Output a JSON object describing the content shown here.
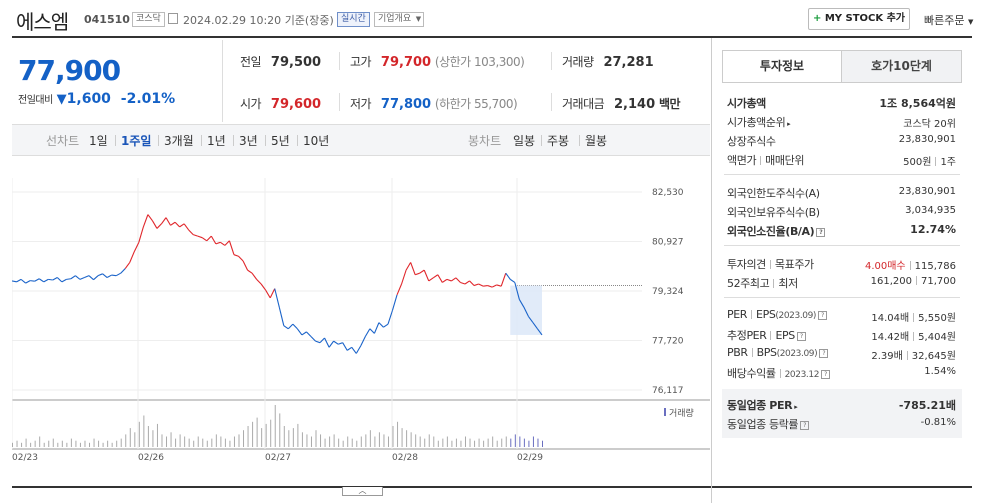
{
  "header": {
    "name": "에스엠",
    "code": "041510",
    "market": "코스닥",
    "datetime": "2024.02.29 10:20",
    "basis": "기준(장중)",
    "realtime": "실시간",
    "company_info": "기업개요",
    "mystock_btn": "MY STOCK 추가",
    "quick_order": "빠른주문"
  },
  "price": {
    "current": "77,900",
    "compare_label": "전일대비",
    "change": "1,600",
    "change_pct": "-2.01%"
  },
  "quote": {
    "prev_label": "전일",
    "prev": "79,500",
    "high_label": "고가",
    "high": "79,700",
    "upper_limit": "(상한가 103,300)",
    "volume_label": "거래량",
    "volume": "27,281",
    "open_label": "시가",
    "open": "79,600",
    "low_label": "저가",
    "low": "77,800",
    "lower_limit": "(하한가 55,700)",
    "amount_label": "거래대금",
    "amount": "2,140",
    "amount_unit": "백만"
  },
  "toolbar": {
    "line_label": "선차트",
    "periods": [
      "1일",
      "1주일",
      "3개월",
      "1년",
      "3년",
      "5년",
      "10년"
    ],
    "active_period": "1주일",
    "candle_label": "봉차트",
    "candles": [
      "일봉",
      "주봉",
      "월봉"
    ]
  },
  "chart_data": {
    "type": "line",
    "y_ticks": [
      "82,530",
      "80,927",
      "79,324",
      "77,720",
      "76,117"
    ],
    "ylim": [
      76117,
      82530
    ],
    "x_ticks": [
      "02/23",
      "02/26",
      "02/27",
      "02/28",
      "02/29"
    ],
    "prev_close": 79500,
    "legend": "거래량",
    "colors": {
      "up": "#e0262b",
      "down": "#1a63c9",
      "volume": "#aaaaaa"
    },
    "series_price": [
      79650,
      79620,
      79700,
      79580,
      79660,
      79640,
      79720,
      79620,
      79700,
      79680,
      79760,
      79620,
      79700,
      79720,
      79820,
      79700,
      79760,
      79820,
      79690,
      79820,
      79880,
      79760,
      79840,
      79820,
      79900,
      80050,
      80250,
      80600,
      80900,
      81400,
      81800,
      81600,
      81350,
      81500,
      81700,
      81450,
      81550,
      81400,
      81500,
      81300,
      81150,
      81100,
      81050,
      80950,
      81100,
      80850,
      80900,
      80800,
      80950,
      80500,
      80450,
      80300,
      80000,
      79900,
      79700,
      79550,
      79350,
      79100,
      79400,
      78800,
      78200,
      78100,
      78250,
      78100,
      77900,
      78000,
      77850,
      77700,
      77650,
      77800,
      77500,
      77700,
      77600,
      77650,
      77400,
      77500,
      77300,
      77550,
      77850,
      78100,
      77950,
      78300,
      78150,
      78250,
      78700,
      79200,
      79550,
      80000,
      80250,
      79850,
      79900,
      80000,
      79650,
      79750,
      79850,
      79600,
      79700,
      79650,
      79750,
      79600,
      79550,
      79650,
      79500,
      79550,
      79480,
      79500,
      79450,
      79520,
      79480,
      79900,
      79700,
      79600,
      79050,
      78800,
      78500,
      78300,
      78100,
      77900
    ],
    "series_volume": [
      2,
      3,
      2,
      4,
      2,
      3,
      5,
      2,
      3,
      4,
      2,
      3,
      2,
      4,
      3,
      2,
      3,
      2,
      4,
      3,
      2,
      3,
      2,
      3,
      4,
      6,
      9,
      7,
      12,
      15,
      10,
      8,
      11,
      6,
      5,
      7,
      4,
      6,
      5,
      4,
      3,
      5,
      4,
      3,
      4,
      6,
      5,
      4,
      3,
      5,
      6,
      8,
      10,
      12,
      14,
      9,
      11,
      13,
      20,
      16,
      10,
      8,
      9,
      11,
      7,
      6,
      5,
      8,
      6,
      4,
      5,
      6,
      4,
      3,
      5,
      4,
      3,
      5,
      6,
      8,
      5,
      7,
      6,
      5,
      10,
      12,
      9,
      8,
      7,
      6,
      5,
      4,
      6,
      5,
      3,
      4,
      5,
      3,
      4,
      3,
      5,
      4,
      3,
      4,
      3,
      4,
      5,
      3,
      4,
      5,
      4,
      6,
      5,
      4,
      3,
      5,
      4,
      3
    ]
  },
  "tabs": {
    "info": "투자정보",
    "quote10": "호가10단계"
  },
  "invest": {
    "market_cap_label": "시가총액",
    "market_cap": "1조 8,564억원",
    "rank_label": "시가총액순위",
    "rank": "코스닥 20위",
    "shares_label": "상장주식수",
    "shares": "23,830,901",
    "par_label": "액면가",
    "unit_label": "매매단위",
    "par": "500원",
    "unit": "1주",
    "foreign_limit_label": "외국인한도주식수(A)",
    "foreign_limit": "23,830,901",
    "foreign_hold_label": "외국인보유주식수(B)",
    "foreign_hold": "3,034,935",
    "foreign_rate_label": "외국인소진율(B/A)",
    "foreign_rate": "12.74%",
    "opinion_label": "투자의견",
    "target_label": "목표주가",
    "opinion": "4.00매수",
    "target": "115,786",
    "w52_high_label": "52주최고",
    "w52_low_label": "최저",
    "w52_high": "161,200",
    "w52_low": "71,700",
    "per_label": "PER",
    "eps_label": "EPS",
    "eps_period": "(2023.09)",
    "per": "14.04배",
    "eps": "5,550원",
    "est_per_label": "추정PER",
    "est_eps_label": "EPS",
    "est_per": "14.42배",
    "est_eps": "5,404원",
    "pbr_label": "PBR",
    "bps_label": "BPS",
    "bps_period": "(2023.09)",
    "pbr": "2.39배",
    "bps": "32,645원",
    "dividend_label": "배당수익률",
    "dividend_period": "2023.12",
    "dividend": "1.54%",
    "sector_per_label": "동일업종 PER",
    "sector_per": "-785.21배",
    "sector_change_label": "동일업종 등락률",
    "sector_change": "-0.81%"
  }
}
